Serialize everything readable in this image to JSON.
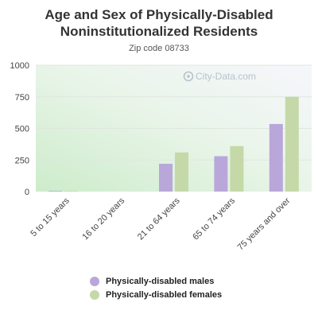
{
  "chart_data": {
    "type": "bar",
    "title": "Age and Sex of Physically-Disabled Noninstitutionalized Residents",
    "subtitle": "Zip code 08733",
    "watermark": "City-Data.com",
    "categories": [
      "5 to 15 years",
      "16 to 20 years",
      "21 to 64 years",
      "65 to 74 years",
      "75 years and over"
    ],
    "series": [
      {
        "name": "Physically-disabled males",
        "color": "#b9a7da",
        "values": [
          5,
          0,
          220,
          280,
          535
        ]
      },
      {
        "name": "Physically-disabled females",
        "color": "#c5d9a8",
        "values": [
          5,
          0,
          310,
          360,
          750
        ]
      }
    ],
    "ylim": [
      0,
      1000
    ],
    "yticks": [
      0,
      250,
      500,
      750,
      1000
    ],
    "xlabel": "",
    "ylabel": "",
    "grid": true,
    "legend_position": "bottom"
  }
}
